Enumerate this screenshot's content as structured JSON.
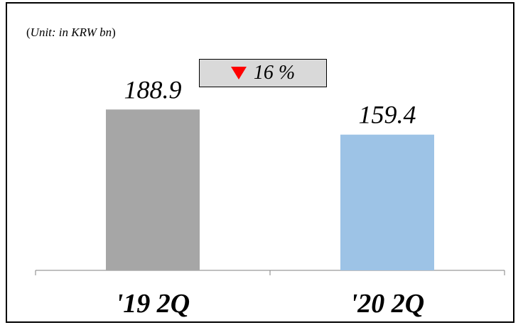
{
  "unit_label": {
    "open": "(",
    "text": "Unit: in KRW bn",
    "close": ")"
  },
  "change": {
    "arrow_icon": "down-triangle-icon",
    "arrow_color": "#ff0000",
    "value": "16 %",
    "box_color": "#d9d9d9"
  },
  "chart_data": {
    "type": "bar",
    "categories": [
      "'19 2Q",
      "'20 2Q"
    ],
    "values": [
      188.9,
      159.4
    ],
    "value_labels": [
      "188.9",
      "159.4"
    ],
    "colors": [
      "#a6a6a6",
      "#9dc3e6"
    ],
    "title": "",
    "xlabel": "",
    "ylabel": "",
    "ylim": [
      0,
      300
    ],
    "grid": false,
    "legend": "none"
  }
}
